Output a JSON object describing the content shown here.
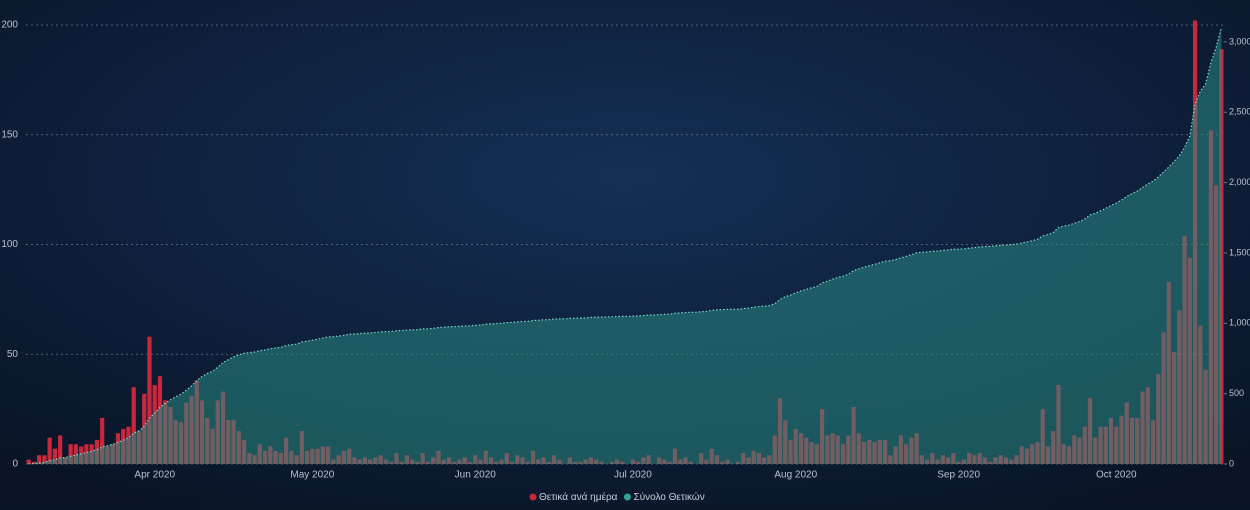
{
  "chart_data": {
    "type": "combo",
    "categories": [
      null,
      null,
      null,
      null,
      null,
      null,
      null,
      null,
      null,
      null,
      null,
      null,
      null,
      null,
      null,
      null,
      null,
      null,
      null,
      null,
      null,
      null,
      null,
      null,
      "Apr 2020",
      null,
      null,
      null,
      null,
      null,
      null,
      null,
      null,
      null,
      null,
      null,
      null,
      null,
      null,
      null,
      null,
      null,
      null,
      null,
      null,
      null,
      null,
      null,
      null,
      null,
      null,
      null,
      null,
      null,
      "May 2020",
      null,
      null,
      null,
      null,
      null,
      null,
      null,
      null,
      null,
      null,
      null,
      null,
      null,
      null,
      null,
      null,
      null,
      null,
      null,
      null,
      null,
      null,
      null,
      null,
      null,
      null,
      null,
      null,
      null,
      null,
      "Jun 2020",
      null,
      null,
      null,
      null,
      null,
      null,
      null,
      null,
      null,
      null,
      null,
      null,
      null,
      null,
      null,
      null,
      null,
      null,
      null,
      null,
      null,
      null,
      null,
      null,
      null,
      null,
      null,
      null,
      null,
      "Jul 2020",
      null,
      null,
      null,
      null,
      null,
      null,
      null,
      null,
      null,
      null,
      null,
      null,
      null,
      null,
      null,
      null,
      null,
      null,
      null,
      null,
      null,
      null,
      null,
      null,
      null,
      null,
      null,
      null,
      null,
      null,
      "Aug 2020",
      null,
      null,
      null,
      null,
      null,
      null,
      null,
      null,
      null,
      null,
      null,
      null,
      null,
      null,
      null,
      null,
      null,
      null,
      null,
      null,
      null,
      null,
      null,
      null,
      null,
      null,
      null,
      null,
      null,
      null,
      "Sep 2020",
      null,
      null,
      null,
      null,
      null,
      null,
      null,
      null,
      null,
      null,
      null,
      null,
      null,
      null,
      null,
      null,
      null,
      null,
      null,
      null,
      null,
      null,
      null,
      null,
      null,
      null,
      null,
      null,
      null,
      "Oct 2020",
      null,
      null,
      null,
      null,
      null,
      null,
      null,
      null,
      null,
      null,
      null,
      null,
      null,
      null,
      null,
      null,
      null,
      null,
      null,
      null
    ],
    "series": [
      {
        "name": "Θετικά ανά ημέρα",
        "color": "#c8283c",
        "type": "bar",
        "values": [
          2,
          1,
          4,
          4,
          12,
          7,
          13,
          3,
          9,
          9,
          8,
          9,
          9,
          11,
          21,
          8,
          9,
          14,
          16,
          17,
          35,
          15,
          32,
          58,
          36,
          40,
          29,
          26,
          20,
          19,
          28,
          31,
          38,
          29,
          21,
          16,
          29,
          33,
          20,
          20,
          15,
          11,
          5,
          4,
          9,
          6,
          8,
          6,
          5,
          12,
          6,
          4,
          15,
          6,
          7,
          7,
          8,
          8,
          2,
          4,
          6,
          7,
          3,
          2,
          3,
          2,
          3,
          4,
          2,
          1,
          5,
          1,
          4,
          2,
          1,
          5,
          1,
          3,
          6,
          2,
          3,
          1,
          2,
          3,
          1,
          4,
          2,
          6,
          3,
          1,
          2,
          5,
          1,
          4,
          3,
          1,
          6,
          2,
          3,
          1,
          4,
          2,
          0,
          3,
          1,
          1,
          2,
          3,
          2,
          1,
          0,
          1,
          2,
          1,
          0,
          2,
          1,
          3,
          4,
          0,
          3,
          2,
          1,
          7,
          2,
          3,
          1,
          0,
          5,
          2,
          7,
          4,
          1,
          2,
          0,
          1,
          5,
          3,
          6,
          5,
          3,
          4,
          13,
          30,
          20,
          11,
          16,
          14,
          12,
          10,
          9,
          25,
          13,
          14,
          13,
          9,
          13,
          26,
          14,
          10,
          11,
          10,
          11,
          11,
          4,
          8,
          13,
          9,
          12,
          14,
          4,
          2,
          5,
          2,
          4,
          3,
          5,
          1,
          2,
          5,
          4,
          5,
          3,
          1,
          3,
          4,
          3,
          2,
          4,
          8,
          7,
          9,
          10,
          25,
          8,
          15,
          36,
          9,
          8,
          13,
          12,
          17,
          30,
          12,
          17,
          17,
          21,
          17,
          22,
          28,
          21,
          21,
          33,
          35,
          20,
          41,
          60,
          83,
          51,
          70,
          104,
          94,
          202,
          63,
          43,
          152,
          127,
          189
        ]
      },
      {
        "name": "Σύνολο Θετικών",
        "color": "#2a8a84",
        "type": "area",
        "axis": "y2",
        "values": [
          2,
          3,
          7,
          11,
          23,
          30,
          43,
          46,
          55,
          64,
          72,
          81,
          90,
          101,
          122,
          130,
          139,
          153,
          169,
          186,
          221,
          236,
          268,
          326,
          362,
          402,
          431,
          457,
          477,
          496,
          524,
          555,
          593,
          622,
          643,
          659,
          688,
          721,
          741,
          761,
          776,
          787,
          792,
          796,
          805,
          811,
          819,
          825,
          830,
          842,
          848,
          852,
          867,
          873,
          880,
          887,
          895,
          903,
          905,
          909,
          915,
          922,
          925,
          927,
          930,
          932,
          935,
          939,
          941,
          942,
          947,
          948,
          952,
          954,
          955,
          960,
          961,
          964,
          970,
          972,
          975,
          976,
          978,
          981,
          982,
          986,
          988,
          994,
          997,
          998,
          1000,
          1005,
          1006,
          1010,
          1013,
          1014,
          1020,
          1022,
          1025,
          1026,
          1030,
          1032,
          1032,
          1035,
          1036,
          1037,
          1039,
          1042,
          1044,
          1045,
          1045,
          1046,
          1048,
          1049,
          1049,
          1051,
          1052,
          1055,
          1059,
          1059,
          1062,
          1064,
          1065,
          1072,
          1074,
          1077,
          1078,
          1078,
          1083,
          1085,
          1092,
          1096,
          1097,
          1099,
          1099,
          1100,
          1105,
          1108,
          1114,
          1119,
          1122,
          1126,
          1139,
          1169,
          1189,
          1200,
          1216,
          1230,
          1242,
          1252,
          1261,
          1286,
          1299,
          1313,
          1326,
          1335,
          1348,
          1374,
          1388,
          1398,
          1409,
          1419,
          1430,
          1441,
          1445,
          1453,
          1466,
          1475,
          1487,
          1501,
          1505,
          1507,
          1512,
          1514,
          1518,
          1521,
          1526,
          1527,
          1529,
          1534,
          1538,
          1543,
          1546,
          1547,
          1550,
          1554,
          1557,
          1559,
          1563,
          1571,
          1578,
          1587,
          1597,
          1622,
          1630,
          1645,
          1681,
          1690,
          1698,
          1711,
          1723,
          1740,
          1770,
          1782,
          1799,
          1816,
          1837,
          1854,
          1876,
          1902,
          1922,
          1940,
          1965,
          1990,
          2010,
          2040,
          2075,
          2110,
          2150,
          2190,
          2250,
          2330,
          2560,
          2650,
          2700,
          2850,
          2960,
          3100
        ]
      }
    ],
    "ylim": [
      0,
      200
    ],
    "yticks": [
      0,
      50,
      100,
      150,
      200
    ],
    "y2lim": [
      0,
      3120
    ],
    "y2ticks": [
      0,
      500,
      {
        "value": 1000,
        "label": "1,000"
      },
      {
        "value": 1500,
        "label": "1,500"
      },
      {
        "value": 2000,
        "label": "2,000"
      },
      {
        "value": 2500,
        "label": "2,500"
      },
      {
        "value": 3000,
        "label": "3,000"
      }
    ],
    "grid": true,
    "legend": "bottom"
  }
}
